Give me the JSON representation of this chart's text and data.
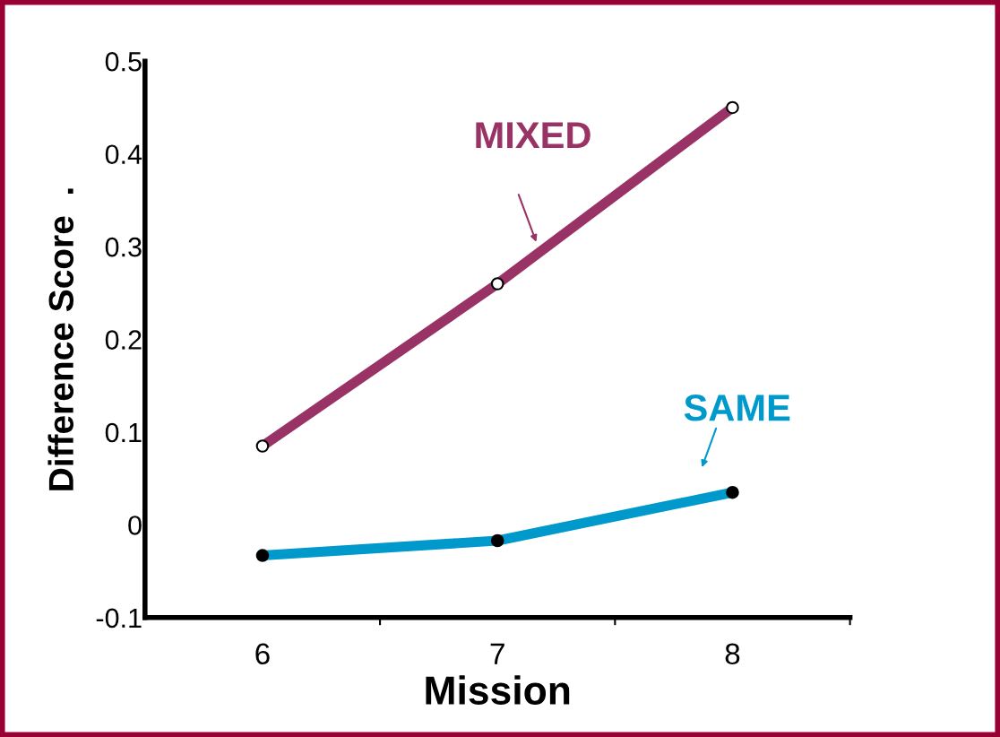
{
  "chart_data": {
    "type": "line",
    "xlabel": "Mission",
    "ylabel": "Difference Score  .",
    "x": [
      6,
      7,
      8
    ],
    "series": [
      {
        "name": "MIXED",
        "color": "#993366",
        "values": [
          0.085,
          0.26,
          0.45
        ]
      },
      {
        "name": "SAME",
        "color": "#0099cc",
        "values": [
          -0.033,
          -0.017,
          0.035
        ]
      }
    ],
    "xlim": [
      5.5,
      8.5
    ],
    "xticks": [
      6,
      {
        "value": 6.5,
        "label": null
      },
      7,
      {
        "value": 7.5,
        "label": null
      },
      8,
      {
        "value": 8.5,
        "label": null
      }
    ],
    "ylim": [
      -0.1,
      0.5
    ],
    "yticks": [
      -0.1,
      0,
      0.1,
      0.2,
      0.3,
      0.4,
      0.5
    ],
    "marker": "circle",
    "line_style": "solid",
    "grid": false,
    "legend": false
  }
}
